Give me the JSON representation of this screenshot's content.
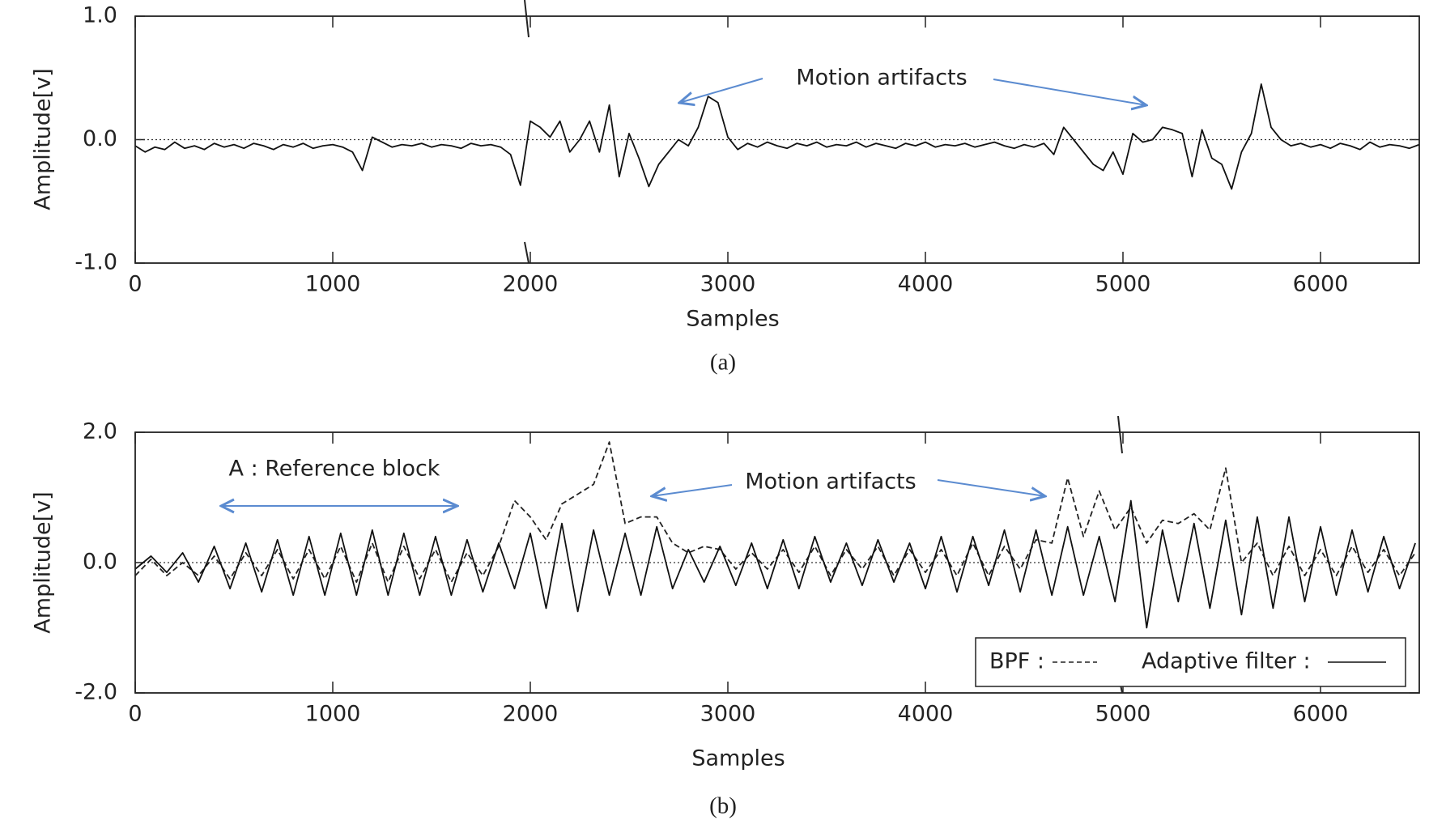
{
  "chart_data": [
    {
      "type": "line",
      "caption": "(a)",
      "xlabel": "Samples",
      "ylabel": "Amplitude[v]",
      "annotations": [
        "Motion artifacts"
      ],
      "x": [
        0,
        50,
        100,
        150,
        200,
        250,
        300,
        350,
        400,
        450,
        500,
        550,
        600,
        650,
        700,
        750,
        800,
        850,
        900,
        950,
        1000,
        1050,
        1100,
        1150,
        1200,
        1250,
        1300,
        1350,
        1400,
        1450,
        1500,
        1550,
        1600,
        1650,
        1700,
        1750,
        1800,
        1850,
        1900,
        1950,
        2000,
        2050,
        2100,
        2150,
        2200,
        2250,
        2300,
        2350,
        2400,
        2450,
        2500,
        2550,
        2600,
        2650,
        2700,
        2750,
        2800,
        2850,
        2900,
        2950,
        3000,
        3050,
        3100,
        3150,
        3200,
        3250,
        3300,
        3350,
        3400,
        3450,
        3500,
        3550,
        3600,
        3650,
        3700,
        3750,
        3800,
        3850,
        3900,
        3950,
        4000,
        4050,
        4100,
        4150,
        4200,
        4250,
        4300,
        4350,
        4400,
        4450,
        4500,
        4550,
        4600,
        4650,
        4700,
        4750,
        4800,
        4850,
        4900,
        4950,
        5000,
        5050,
        5100,
        5150,
        5200,
        5250,
        5300,
        5350,
        5400,
        5450,
        5500,
        5550,
        5600,
        5650,
        5700,
        5750,
        5800,
        5850,
        5900,
        5950,
        6000,
        6050,
        6100,
        6150,
        6200,
        6250,
        6300,
        6350,
        6400,
        6450,
        6500
      ],
      "series": [
        {
          "color": "#111111",
          "line_style": "solid",
          "values": [
            -0.05,
            -0.1,
            -0.06,
            -0.08,
            -0.02,
            -0.07,
            -0.05,
            -0.08,
            -0.03,
            -0.06,
            -0.04,
            -0.07,
            -0.03,
            -0.05,
            -0.08,
            -0.04,
            -0.06,
            -0.03,
            -0.07,
            -0.05,
            -0.04,
            -0.06,
            -0.1,
            -0.25,
            0.02,
            -0.02,
            -0.06,
            -0.04,
            -0.05,
            -0.03,
            -0.06,
            -0.04,
            -0.05,
            -0.07,
            -0.03,
            -0.05,
            -0.04,
            -0.06,
            -0.12,
            -0.37,
            0.15,
            0.1,
            0.02,
            0.15,
            -0.1,
            0.0,
            0.15,
            -0.1,
            0.28,
            -0.3,
            0.05,
            -0.15,
            -0.38,
            -0.2,
            -0.1,
            0.0,
            -0.05,
            0.1,
            0.35,
            0.3,
            0.02,
            -0.08,
            -0.03,
            -0.06,
            -0.02,
            -0.05,
            -0.07,
            -0.03,
            -0.05,
            -0.02,
            -0.06,
            -0.04,
            -0.05,
            -0.02,
            -0.06,
            -0.03,
            -0.05,
            -0.07,
            -0.03,
            -0.05,
            -0.02,
            -0.06,
            -0.04,
            -0.05,
            -0.03,
            -0.06,
            -0.04,
            -0.02,
            -0.05,
            -0.07,
            -0.04,
            -0.06,
            -0.03,
            -0.12,
            0.1,
            0.0,
            -0.1,
            -0.2,
            -0.25,
            -0.1,
            -0.28,
            0.05,
            -0.02,
            0.0,
            0.1,
            0.08,
            0.05,
            -0.3,
            0.08,
            -0.15,
            -0.2,
            -0.4,
            -0.1,
            0.05,
            0.45,
            0.1,
            0.0,
            -0.05,
            -0.03,
            -0.06,
            -0.04,
            -0.07,
            -0.03,
            -0.05,
            -0.08,
            -0.02,
            -0.06,
            -0.04,
            -0.05,
            -0.07,
            -0.04
          ]
        }
      ],
      "xlim": [
        0,
        6500
      ],
      "xticks": [
        0,
        1000,
        2000,
        3000,
        4000,
        5000,
        6000
      ],
      "ylim": [
        -1,
        1
      ],
      "yticks": [
        {
          "value": -1,
          "label": "-1.0"
        },
        {
          "value": 0,
          "label": "0.0"
        },
        {
          "value": 1,
          "label": "1.0"
        }
      ],
      "hline": 0,
      "hline_style": "dotted",
      "legend": false
    },
    {
      "type": "line",
      "caption": "(b)",
      "xlabel": "Samples",
      "ylabel": "Amplitude[v]",
      "annotations": [
        "A : Reference block",
        "Motion artifacts"
      ],
      "x": [
        0,
        80,
        160,
        240,
        320,
        400,
        480,
        560,
        640,
        720,
        800,
        880,
        960,
        1040,
        1120,
        1200,
        1280,
        1360,
        1440,
        1520,
        1600,
        1680,
        1760,
        1840,
        1920,
        2000,
        2080,
        2160,
        2240,
        2320,
        2400,
        2480,
        2560,
        2640,
        2720,
        2800,
        2880,
        2960,
        3040,
        3120,
        3200,
        3280,
        3360,
        3440,
        3520,
        3600,
        3680,
        3760,
        3840,
        3920,
        4000,
        4080,
        4160,
        4240,
        4320,
        4400,
        4480,
        4560,
        4640,
        4720,
        4800,
        4880,
        4960,
        5040,
        5120,
        5200,
        5280,
        5360,
        5440,
        5520,
        5600,
        5680,
        5760,
        5840,
        5920,
        6000,
        6080,
        6160,
        6240,
        6320,
        6400,
        6480
      ],
      "series": [
        {
          "name": "BPF :",
          "color": "#222222",
          "line_style": "dashed",
          "values": [
            -0.2,
            0.05,
            -0.2,
            0.0,
            -0.2,
            0.1,
            -0.25,
            0.15,
            -0.2,
            0.2,
            -0.25,
            0.2,
            -0.25,
            0.25,
            -0.3,
            0.3,
            -0.3,
            0.25,
            -0.25,
            0.2,
            -0.3,
            0.15,
            -0.2,
            0.25,
            0.95,
            0.7,
            0.35,
            0.9,
            1.05,
            1.2,
            1.85,
            0.6,
            0.7,
            0.7,
            0.3,
            0.15,
            0.25,
            0.2,
            -0.1,
            0.15,
            -0.1,
            0.2,
            -0.15,
            0.25,
            -0.2,
            0.2,
            -0.1,
            0.25,
            -0.2,
            0.2,
            -0.15,
            0.2,
            -0.2,
            0.3,
            -0.2,
            0.25,
            -0.1,
            0.35,
            0.3,
            1.3,
            0.4,
            1.1,
            0.5,
            0.85,
            0.3,
            0.65,
            0.6,
            0.75,
            0.5,
            1.45,
            0.0,
            0.3,
            -0.2,
            0.25,
            -0.2,
            0.2,
            -0.2,
            0.25,
            -0.15,
            0.2,
            -0.2,
            0.15
          ]
        },
        {
          "name": "Adaptive filter :",
          "color": "#111111",
          "line_style": "solid",
          "values": [
            -0.1,
            0.1,
            -0.15,
            0.15,
            -0.3,
            0.25,
            -0.4,
            0.3,
            -0.45,
            0.35,
            -0.5,
            0.4,
            -0.5,
            0.45,
            -0.5,
            0.5,
            -0.5,
            0.45,
            -0.5,
            0.4,
            -0.5,
            0.35,
            -0.45,
            0.3,
            -0.4,
            0.45,
            -0.7,
            0.6,
            -0.75,
            0.5,
            -0.5,
            0.45,
            -0.5,
            0.55,
            -0.4,
            0.2,
            -0.3,
            0.25,
            -0.35,
            0.3,
            -0.4,
            0.35,
            -0.4,
            0.4,
            -0.3,
            0.3,
            -0.35,
            0.35,
            -0.3,
            0.3,
            -0.4,
            0.4,
            -0.45,
            0.4,
            -0.35,
            0.5,
            -0.45,
            0.5,
            -0.5,
            0.55,
            -0.5,
            0.4,
            -0.6,
            0.95,
            -1.0,
            0.5,
            -0.6,
            0.6,
            -0.7,
            0.65,
            -0.8,
            0.7,
            -0.7,
            0.7,
            -0.6,
            0.55,
            -0.5,
            0.5,
            -0.45,
            0.4,
            -0.4,
            0.3
          ]
        }
      ],
      "xlim": [
        0,
        6500
      ],
      "xticks": [
        0,
        1000,
        2000,
        3000,
        4000,
        5000,
        6000
      ],
      "ylim": [
        -2,
        2
      ],
      "yticks": [
        {
          "value": -2,
          "label": "-2.0"
        },
        {
          "value": 0,
          "label": "0.0"
        },
        {
          "value": 2,
          "label": "2.0"
        }
      ],
      "hline": 0,
      "hline_style": "dotted",
      "legend": true,
      "legend_position": "lower right"
    }
  ]
}
